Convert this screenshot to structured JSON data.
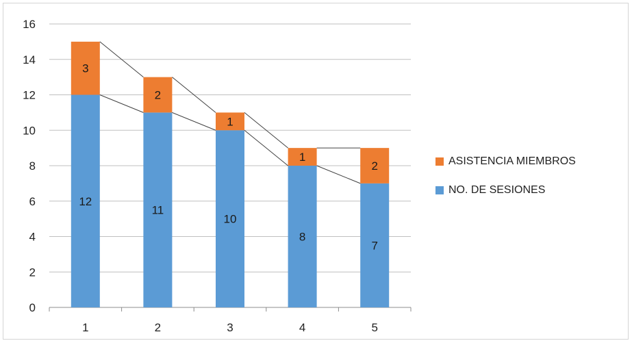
{
  "chart_data": {
    "type": "bar",
    "stacked": true,
    "categories": [
      "1",
      "2",
      "3",
      "4",
      "5"
    ],
    "series": [
      {
        "name": "NO. DE SESIONES",
        "values": [
          12,
          11,
          10,
          8,
          7
        ],
        "color": "#5b9bd5"
      },
      {
        "name": "ASISTENCIA MIEMBROS",
        "values": [
          3,
          2,
          1,
          1,
          2
        ],
        "color": "#ed7d31"
      }
    ],
    "ylim": [
      0,
      16
    ],
    "yticks": [
      "0",
      "2",
      "4",
      "6",
      "8",
      "10",
      "12",
      "14",
      "16"
    ],
    "grid": true,
    "series_lines": true,
    "legend_position": "right"
  },
  "legend": {
    "items": [
      {
        "label": "ASISTENCIA MIEMBROS",
        "color": "#ed7d31"
      },
      {
        "label": "NO. DE SESIONES",
        "color": "#5b9bd5"
      }
    ]
  }
}
